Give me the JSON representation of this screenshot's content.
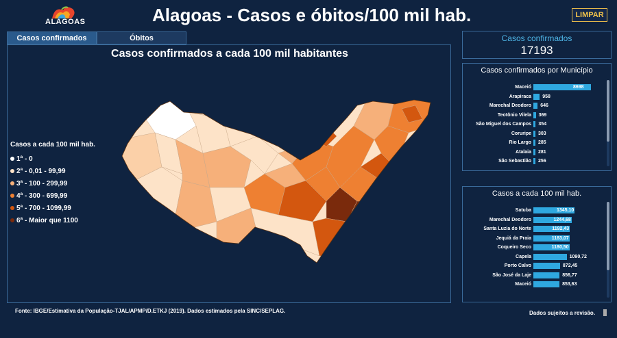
{
  "header": {
    "logo_text": "ALAGOAS",
    "title": "Alagoas - Casos e óbitos/100 mil hab.",
    "clear_label": "LIMPAR"
  },
  "tabs": [
    {
      "label": "Casos confirmados",
      "active": true
    },
    {
      "label": "Óbitos",
      "active": false
    }
  ],
  "map": {
    "title": "Casos confirmados a cada 100 mil habitantes",
    "legend_title": "Casos a cada 100 mil hab.",
    "legend": [
      {
        "label": "1ª - 0",
        "color": "#ffffff"
      },
      {
        "label": "2ª - 0,01 - 99,99",
        "color": "#fde3c8"
      },
      {
        "label": "3ª - 100 - 299,99",
        "color": "#f6b07a"
      },
      {
        "label": "4ª - 300 - 699,99",
        "color": "#ee8032"
      },
      {
        "label": "5ª - 700 - 1099,99",
        "color": "#d3570f"
      },
      {
        "label": "6ª - Maior que 1100",
        "color": "#7a2a0c"
      }
    ]
  },
  "kpi": {
    "label": "Casos confirmados",
    "value": "17193"
  },
  "by_municipality": {
    "title": "Casos confirmados por Município",
    "max": 8698,
    "rows": [
      {
        "name": "Maceió",
        "value": 8698,
        "label": "8698"
      },
      {
        "name": "Arapiraca",
        "value": 958,
        "label": "958"
      },
      {
        "name": "Marechal Deodoro",
        "value": 646,
        "label": "646"
      },
      {
        "name": "Teotônio Vilela",
        "value": 369,
        "label": "369"
      },
      {
        "name": "São Miguel dos Campos",
        "value": 354,
        "label": "354"
      },
      {
        "name": "Coruripe",
        "value": 303,
        "label": "303"
      },
      {
        "name": "Rio Largo",
        "value": 285,
        "label": "285"
      },
      {
        "name": "Atalaia",
        "value": 281,
        "label": "281"
      },
      {
        "name": "São Sebastião",
        "value": 256,
        "label": "256"
      }
    ]
  },
  "per_100k": {
    "title": "Casos a cada 100 mil hab.",
    "max": 1345.1,
    "rows": [
      {
        "name": "Satuba",
        "value": 1345.1,
        "label": "1345,10"
      },
      {
        "name": "Marechal Deodoro",
        "value": 1244.68,
        "label": "1244,68"
      },
      {
        "name": "Santa Luzia do Norte",
        "value": 1192.43,
        "label": "1192,43"
      },
      {
        "name": "Jequiá da Praia",
        "value": 1183.07,
        "label": "1183,07"
      },
      {
        "name": "Coqueiro Seco",
        "value": 1180.5,
        "label": "1180,50"
      },
      {
        "name": "Capela",
        "value": 1090.72,
        "label": "1090,72"
      },
      {
        "name": "Porto Calvo",
        "value": 872.45,
        "label": "872,45"
      },
      {
        "name": "São José da Laje",
        "value": 856.77,
        "label": "856,77"
      },
      {
        "name": "Maceió",
        "value": 853.63,
        "label": "853,63"
      }
    ]
  },
  "footer": {
    "source": "Fonte: IBGE/Estimativa da População-TJAL/APMP/D.ETKJ (2019). Dados estimados pela SINC/SEPLAG.",
    "note": "Dados sujeitos a revisão."
  }
}
